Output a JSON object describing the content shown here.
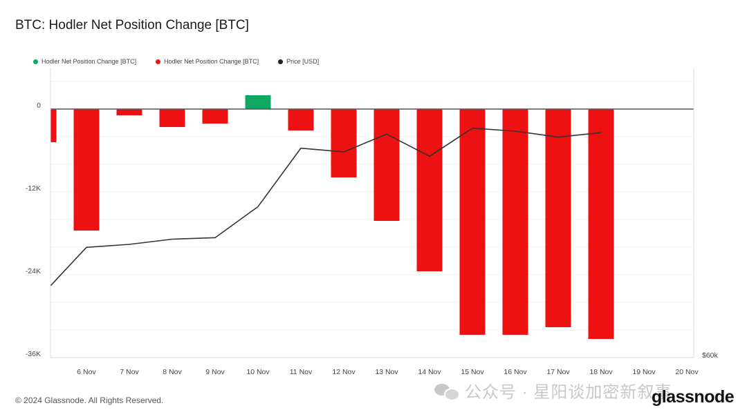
{
  "title": "BTC: Hodler Net Position Change [BTC]",
  "legend": [
    {
      "label": "Hodler Net Position Change [BTC]",
      "color": "#0ea862"
    },
    {
      "label": "Hodler Net Position Change [BTC]",
      "color": "#ee1111"
    },
    {
      "label": "Price [USD]",
      "color": "#222222"
    }
  ],
  "footer": {
    "copyright": "© 2024 Glassnode. All Rights Reserved.",
    "logo": "glassnode",
    "watermark": "公众号 · 星阳谈加密新叙事"
  },
  "chart_data": {
    "type": "bar",
    "x_tick_labels": [
      "6 Nov",
      "7 Nov",
      "8 Nov",
      "9 Nov",
      "10 Nov",
      "11 Nov",
      "12 Nov",
      "13 Nov",
      "14 Nov",
      "15 Nov",
      "16 Nov",
      "17 Nov",
      "18 Nov",
      "19 Nov",
      "20 Nov"
    ],
    "y_tick_labels": [
      {
        "value": 0,
        "label": "0"
      },
      {
        "value": -12000,
        "label": "-12K"
      },
      {
        "value": -24000,
        "label": "-24K"
      },
      {
        "value": -36000,
        "label": "-36K"
      }
    ],
    "ylim": [
      -36000,
      4000
    ],
    "right_axis_label": "$60k",
    "series": [
      {
        "name": "Hodler Net Position Change [BTC]",
        "positive_color": "#0ea862",
        "negative_color": "#ee1111",
        "points": [
          {
            "x": "5 Nov",
            "value": -4800
          },
          {
            "x": "6 Nov",
            "value": -17600
          },
          {
            "x": "7 Nov",
            "value": -900
          },
          {
            "x": "8 Nov",
            "value": -2600
          },
          {
            "x": "9 Nov",
            "value": -2100
          },
          {
            "x": "10 Nov",
            "value": 2000
          },
          {
            "x": "11 Nov",
            "value": -3100
          },
          {
            "x": "12 Nov",
            "value": -9900
          },
          {
            "x": "13 Nov",
            "value": -16200
          },
          {
            "x": "14 Nov",
            "value": -23500
          },
          {
            "x": "15 Nov",
            "value": -32700
          },
          {
            "x": "16 Nov",
            "value": -32700
          },
          {
            "x": "17 Nov",
            "value": -31600
          },
          {
            "x": "18 Nov",
            "value": -33300
          }
        ]
      },
      {
        "name": "Price [USD]",
        "color": "#333333",
        "points": [
          {
            "x": "5 Nov",
            "value": 68700
          },
          {
            "x": "6 Nov",
            "value": 74900
          },
          {
            "x": "7 Nov",
            "value": 75300
          },
          {
            "x": "8 Nov",
            "value": 76000
          },
          {
            "x": "9 Nov",
            "value": 76200
          },
          {
            "x": "10 Nov",
            "value": 80400
          },
          {
            "x": "11 Nov",
            "value": 88300
          },
          {
            "x": "12 Nov",
            "value": 87800
          },
          {
            "x": "13 Nov",
            "value": 90200
          },
          {
            "x": "14 Nov",
            "value": 87200
          },
          {
            "x": "15 Nov",
            "value": 91000
          },
          {
            "x": "16 Nov",
            "value": 90600
          },
          {
            "x": "17 Nov",
            "value": 89800
          },
          {
            "x": "18 Nov",
            "value": 90400
          }
        ]
      }
    ],
    "grid": true,
    "legend_position": "top-left"
  }
}
